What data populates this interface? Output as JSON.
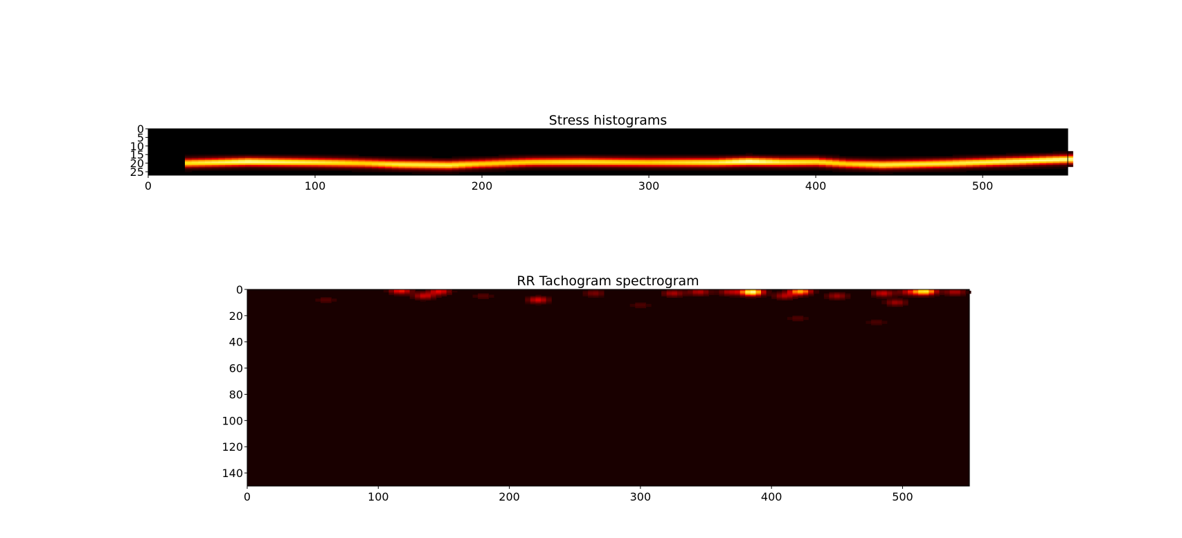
{
  "chart_data": [
    {
      "type": "heatmap",
      "title": "Stress histograms",
      "xlabel": "",
      "ylabel": "",
      "xlim": [
        0,
        551
      ],
      "ylim": [
        27,
        0
      ],
      "xticks": [
        0,
        100,
        200,
        300,
        400,
        500
      ],
      "yticks": [
        0,
        5,
        10,
        15,
        20,
        25
      ],
      "colormap": "hot",
      "colormap_stops": [
        "#000000",
        "#6e0000",
        "#e60000",
        "#ff8000",
        "#ffdc00",
        "#ffffa0"
      ],
      "empty_until_x": 22,
      "ridge": {
        "x": [
          22,
          60,
          100,
          130,
          150,
          180,
          200,
          230,
          260,
          300,
          340,
          360,
          380,
          400,
          420,
          440,
          480,
          520,
          551
        ],
        "y": [
          20.0,
          19.2,
          19.6,
          20.1,
          20.8,
          21.2,
          20.4,
          19.4,
          19.3,
          19.6,
          19.6,
          19.1,
          19.4,
          19.3,
          20.5,
          21.0,
          20.2,
          18.9,
          17.8
        ],
        "peak": [
          0.8,
          0.95,
          0.85,
          0.75,
          0.85,
          0.85,
          0.75,
          0.75,
          0.8,
          0.75,
          0.85,
          1.0,
          0.85,
          0.8,
          0.75,
          0.85,
          0.85,
          0.9,
          0.95
        ]
      }
    },
    {
      "type": "heatmap",
      "title": "RR Tachogram spectrogram",
      "xlabel": "",
      "ylabel": "",
      "xlim": [
        0,
        551
      ],
      "ylim": [
        150,
        0
      ],
      "xticks": [
        0,
        100,
        200,
        300,
        400,
        500
      ],
      "yticks": [
        0,
        20,
        40,
        60,
        80,
        100,
        120,
        140
      ],
      "colormap": "hot",
      "colormap_stops": [
        "#0a0000",
        "#6e0000",
        "#e60000",
        "#ff8000",
        "#ffdc00",
        "#ffffa0"
      ],
      "background_level": 0.03,
      "hotspots": [
        {
          "x": 385,
          "y": 2,
          "v": 1.0
        },
        {
          "x": 517,
          "y": 1.5,
          "v": 0.85
        },
        {
          "x": 422,
          "y": 1.5,
          "v": 0.7
        },
        {
          "x": 117,
          "y": 1,
          "v": 0.45
        },
        {
          "x": 147,
          "y": 1.5,
          "v": 0.4
        },
        {
          "x": 135,
          "y": 5,
          "v": 0.35
        },
        {
          "x": 222,
          "y": 8,
          "v": 0.38
        },
        {
          "x": 325,
          "y": 3,
          "v": 0.3
        },
        {
          "x": 345,
          "y": 2,
          "v": 0.32
        },
        {
          "x": 368,
          "y": 2,
          "v": 0.3
        },
        {
          "x": 410,
          "y": 5,
          "v": 0.3
        },
        {
          "x": 450,
          "y": 5,
          "v": 0.28
        },
        {
          "x": 485,
          "y": 3,
          "v": 0.35
        },
        {
          "x": 495,
          "y": 10,
          "v": 0.28
        },
        {
          "x": 505,
          "y": 2,
          "v": 0.3
        },
        {
          "x": 540,
          "y": 2,
          "v": 0.3
        },
        {
          "x": 265,
          "y": 3,
          "v": 0.22
        },
        {
          "x": 60,
          "y": 8,
          "v": 0.15
        },
        {
          "x": 180,
          "y": 5,
          "v": 0.15
        },
        {
          "x": 300,
          "y": 12,
          "v": 0.14
        },
        {
          "x": 420,
          "y": 22,
          "v": 0.14
        },
        {
          "x": 480,
          "y": 25,
          "v": 0.13
        }
      ]
    }
  ]
}
